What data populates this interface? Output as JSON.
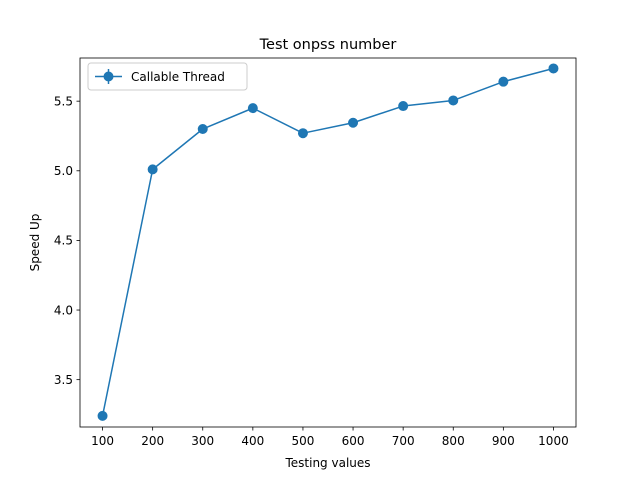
{
  "chart_data": {
    "type": "line",
    "title": "Test onpss number",
    "xlabel": "Testing values",
    "ylabel": "Speed Up",
    "x": [
      100,
      200,
      300,
      400,
      500,
      600,
      700,
      800,
      900,
      1000
    ],
    "xticks": [
      100,
      200,
      300,
      400,
      500,
      600,
      700,
      800,
      900,
      1000
    ],
    "yticks": [
      3.5,
      4.0,
      4.5,
      5.0,
      5.5
    ],
    "xlim": [
      55,
      1045
    ],
    "ylim": [
      3.16,
      5.81
    ],
    "grid": false,
    "legend_position": "top-left",
    "series": [
      {
        "name": "Callable Thread",
        "color": "#1f77b4",
        "marker": "circle",
        "values": [
          3.24,
          5.01,
          5.3,
          5.45,
          5.27,
          5.345,
          5.465,
          5.505,
          5.64,
          5.735
        ]
      }
    ]
  }
}
